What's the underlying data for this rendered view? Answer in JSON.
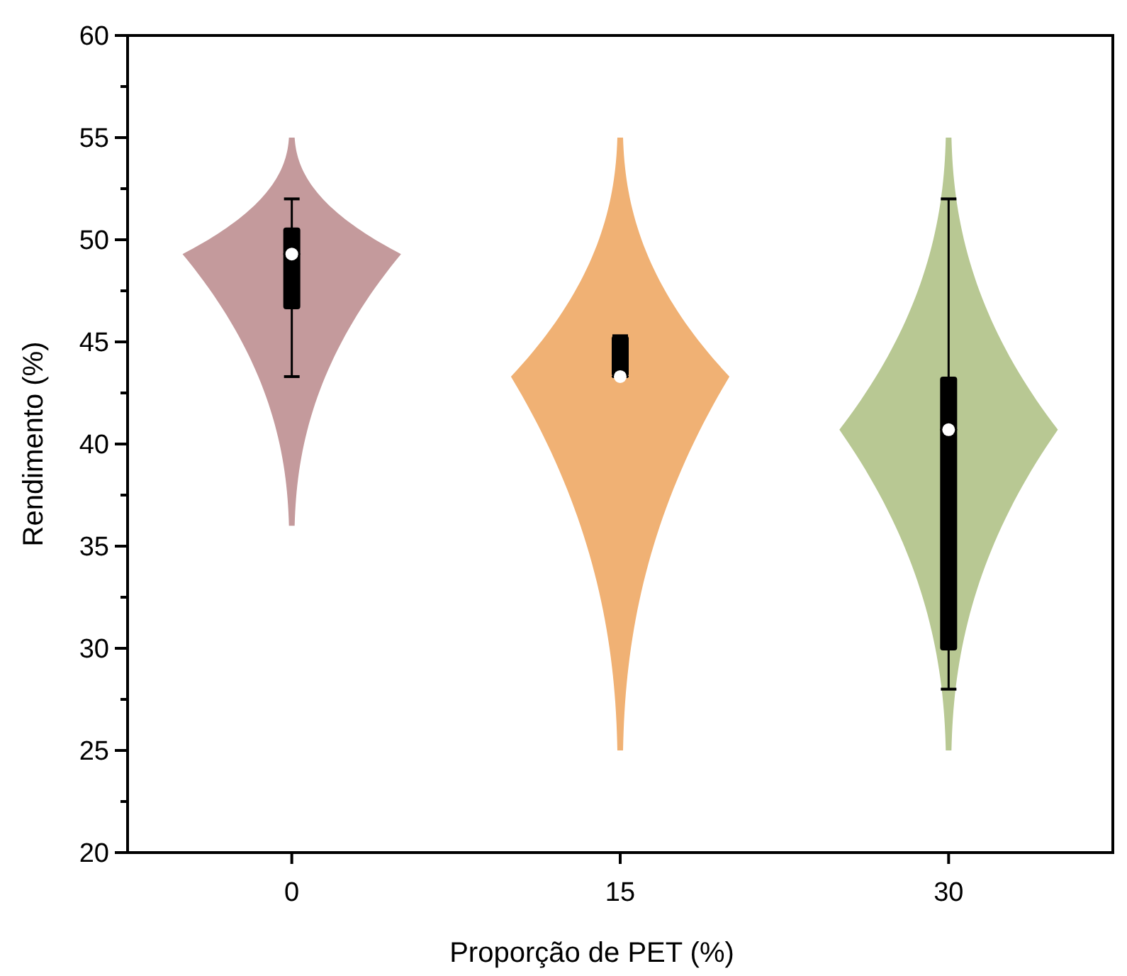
{
  "chart_data": {
    "type": "box",
    "xlabel": "Proporção de PET (%)",
    "ylabel": "Rendimento (%)",
    "categories": [
      "0",
      "15",
      "30"
    ],
    "ylim": [
      20,
      60
    ],
    "yticks": [
      20,
      {
        "value": 22.5,
        "label": null
      },
      25,
      {
        "value": 27.5,
        "label": null
      },
      30,
      {
        "value": 32.5,
        "label": null
      },
      35,
      {
        "value": 37.5,
        "label": null
      },
      40,
      {
        "value": 42.5,
        "label": null
      },
      45,
      {
        "value": 47.5,
        "label": null
      },
      50,
      {
        "value": 52.5,
        "label": null
      },
      55,
      {
        "value": 57.5,
        "label": null
      },
      60
    ],
    "color": "#000000",
    "boxes": [
      {
        "low": 43.3,
        "q1": 46.6,
        "median": 49.3,
        "q3": 50.6,
        "high": 52,
        "mean": 49.3
      },
      {
        "low": 43.3,
        "q1": 43.3,
        "median": 43.3,
        "q3": 45.3,
        "high": 45.3,
        "mean": 43.3
      },
      {
        "low": 28,
        "q1": 29.9,
        "median": 40.7,
        "q3": 43.3,
        "high": 52,
        "mean": 40.7
      }
    ]
  }
}
